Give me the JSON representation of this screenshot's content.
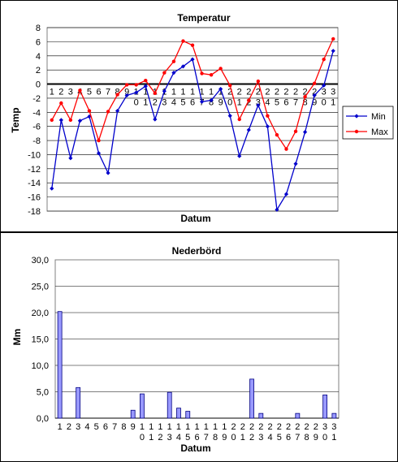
{
  "chart_data": [
    {
      "type": "line",
      "title": "Temperatur",
      "xlabel": "Datum",
      "ylabel": "Temp",
      "ylim": [
        -18,
        8
      ],
      "yticks": [
        8,
        6,
        4,
        2,
        0,
        -2,
        -4,
        -6,
        -8,
        -10,
        -12,
        -14,
        -16,
        -18
      ],
      "grid": true,
      "legend": "right",
      "categories": [
        "1",
        "2",
        "3",
        "4",
        "5",
        "6",
        "7",
        "8",
        "9",
        "10",
        "11",
        "12",
        "13",
        "14",
        "15",
        "16",
        "17",
        "18",
        "19",
        "20",
        "21",
        "22",
        "23",
        "24",
        "25",
        "26",
        "27",
        "28",
        "29",
        "30",
        "31"
      ],
      "category_top": [
        "1",
        "2",
        "3",
        "4",
        "5",
        "6",
        "7",
        "8",
        "9",
        "1",
        "1",
        "1",
        "1",
        "1",
        "1",
        "1",
        "1",
        "1",
        "1",
        "2",
        "2",
        "2",
        "2",
        "2",
        "2",
        "2",
        "2",
        "2",
        "2",
        "3",
        "3"
      ],
      "category_bottom": [
        "",
        "",
        "",
        "",
        "",
        "",
        "",
        "",
        "",
        "0",
        "1",
        "2",
        "3",
        "4",
        "5",
        "6",
        "7",
        "8",
        "9",
        "0",
        "1",
        "2",
        "3",
        "4",
        "5",
        "6",
        "7",
        "8",
        "9",
        "0",
        "1"
      ],
      "series": [
        {
          "name": "Min",
          "color": "#0000cc",
          "marker": "diamond",
          "values": [
            -14.8,
            -5.1,
            -10.5,
            -5.2,
            -4.6,
            -9.8,
            -12.6,
            -3.8,
            -1.6,
            -1.2,
            -0.3,
            -5.0,
            -1.0,
            1.6,
            2.5,
            3.5,
            -2.5,
            -2.3,
            -0.7,
            -4.5,
            -10.2,
            -6.5,
            -3.0,
            -6.0,
            -17.8,
            -15.6,
            -11.3,
            -6.8,
            -1.6,
            -0.2,
            4.7
          ]
        },
        {
          "name": "Max",
          "color": "#ff0000",
          "marker": "circle",
          "values": [
            -5.1,
            -2.7,
            -5.1,
            -0.9,
            -3.8,
            -8.0,
            -3.9,
            -1.5,
            -0.1,
            -0.1,
            0.5,
            -1.3,
            1.6,
            3.2,
            6.1,
            5.5,
            1.5,
            1.3,
            2.2,
            -0.2,
            -5.0,
            -2.3,
            0.4,
            -4.5,
            -7.2,
            -9.2,
            -6.7,
            -1.8,
            0.1,
            3.5,
            6.4
          ]
        }
      ]
    },
    {
      "type": "bar",
      "title": "Nederbörd",
      "xlabel": "Datum",
      "ylabel": "Mm",
      "ylim": [
        0,
        30
      ],
      "yticks": [
        "30,0",
        "25,0",
        "20,0",
        "15,0",
        "10,0",
        "5,0",
        "0,0"
      ],
      "grid": true,
      "categories": [
        "1",
        "2",
        "3",
        "4",
        "5",
        "6",
        "7",
        "8",
        "9",
        "10",
        "11",
        "12",
        "13",
        "14",
        "15",
        "16",
        "17",
        "18",
        "19",
        "20",
        "21",
        "22",
        "23",
        "24",
        "25",
        "26",
        "27",
        "28",
        "29",
        "30",
        "31"
      ],
      "category_top": [
        "1",
        "2",
        "3",
        "4",
        "5",
        "6",
        "7",
        "8",
        "9",
        "1",
        "1",
        "1",
        "1",
        "1",
        "1",
        "1",
        "1",
        "1",
        "1",
        "2",
        "2",
        "2",
        "2",
        "2",
        "2",
        "2",
        "2",
        "2",
        "2",
        "3",
        "3"
      ],
      "category_bottom": [
        "",
        "",
        "",
        "",
        "",
        "",
        "",
        "",
        "",
        "0",
        "1",
        "2",
        "3",
        "4",
        "5",
        "6",
        "7",
        "8",
        "9",
        "0",
        "1",
        "2",
        "3",
        "4",
        "5",
        "6",
        "7",
        "8",
        "9",
        "0",
        "1"
      ],
      "series": [
        {
          "color": "#9999ff",
          "edge": "#000080",
          "values": [
            20.2,
            0,
            5.8,
            0,
            0,
            0,
            0,
            0,
            1.5,
            4.6,
            0,
            0,
            4.9,
            1.9,
            1.3,
            0,
            0,
            0,
            0,
            0,
            0,
            7.4,
            0.9,
            0,
            0,
            0,
            0.9,
            0,
            0,
            4.4,
            0.9
          ]
        }
      ]
    }
  ]
}
